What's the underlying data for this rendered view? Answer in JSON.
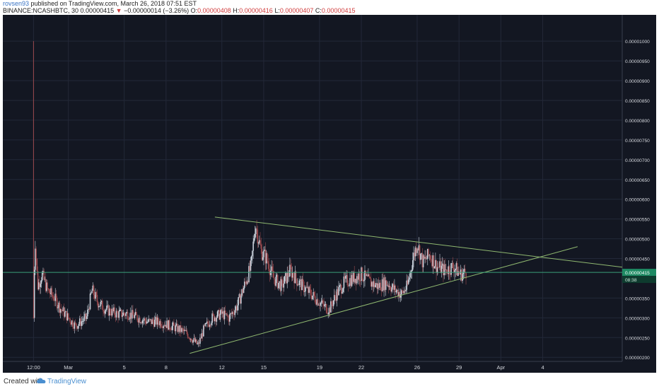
{
  "header": {
    "author": "rovsen93",
    "published_text": "published on TradingView.com, March 26, 2018 07:51 EST",
    "symbol": "BINANCE:NCASHBTC, 30",
    "last": "0.00000415",
    "change_arrow": "▼",
    "change": "−0.00000014 (−3.26%)",
    "open_label": "O:",
    "open": "0.00000408",
    "high_label": "H:",
    "high": "0.00000416",
    "low_label": "L:",
    "low": "0.00000407",
    "close_label": "C:",
    "close": "0.00000415"
  },
  "footer": {
    "created_with": "Created with",
    "brand": "TradingView",
    "logo_icon": "tradingview-cloud-icon"
  },
  "colors": {
    "background": "#131722",
    "grid": "#232838",
    "up": "#c9d2dc",
    "down": "#9b4a4e",
    "trendline": "#8fb870",
    "price_line": "#3aa07a",
    "price_badge": "#1e8a63",
    "axis_text": "#d5d8de"
  },
  "chart_data": {
    "type": "candlestick",
    "symbol": "BINANCE:NCASHBTC",
    "interval": "30",
    "y_ticks": [
      "0.00001000",
      "0.00000950",
      "0.00000900",
      "0.00000850",
      "0.00000800",
      "0.00000750",
      "0.00000700",
      "0.00000650",
      "0.00000600",
      "0.00000550",
      "0.00000500",
      "0.00000450",
      "0.00000350",
      "0.00000300",
      "0.00000250",
      "0.00000200"
    ],
    "x_ticks": [
      {
        "label": "12:00",
        "day": 0
      },
      {
        "label": "Mar",
        "day": 2.5
      },
      {
        "label": "5",
        "day": 6.5
      },
      {
        "label": "8",
        "day": 9.5
      },
      {
        "label": "12",
        "day": 13.5
      },
      {
        "label": "15",
        "day": 16.5
      },
      {
        "label": "19",
        "day": 20.5
      },
      {
        "label": "22",
        "day": 23.5
      },
      {
        "label": "26",
        "day": 27.5
      },
      {
        "label": "29",
        "day": 30.5
      },
      {
        "label": "Apr",
        "day": 33.5
      },
      {
        "label": "4",
        "day": 36.5
      }
    ],
    "ylim": [
      1.95e-06,
      1.02e-05
    ],
    "xlim": [
      -2.2,
      42.2
    ],
    "current_price": "0.00000415",
    "countdown": "08:38",
    "price_path": [
      [
        0,
        3e-06,
        1e-05
      ],
      [
        0.1,
        5.1e-06
      ],
      [
        0.3,
        3.8e-06
      ],
      [
        0.6,
        4.1e-06
      ],
      [
        1.0,
        3.7e-06
      ],
      [
        1.5,
        3.5e-06
      ],
      [
        2.0,
        3.2e-06
      ],
      [
        2.5,
        3e-06
      ],
      [
        3.0,
        2.8e-06
      ],
      [
        3.4,
        2.9e-06
      ],
      [
        3.8,
        3e-06
      ],
      [
        4.2,
        3.7e-06
      ],
      [
        4.6,
        3.4e-06
      ],
      [
        5.2,
        3.2e-06
      ],
      [
        6.0,
        3.1e-06
      ],
      [
        6.8,
        3.1e-06
      ],
      [
        7.5,
        3e-06
      ],
      [
        8.2,
        2.9e-06
      ],
      [
        9.0,
        2.9e-06
      ],
      [
        9.8,
        2.8e-06
      ],
      [
        10.5,
        2.7e-06
      ],
      [
        11.0,
        2.6e-06
      ],
      [
        11.8,
        2.3e-06
      ],
      [
        12.2,
        2.7e-06
      ],
      [
        12.8,
        3e-06
      ],
      [
        13.5,
        3.1e-06
      ],
      [
        14.0,
        3e-06
      ],
      [
        14.6,
        3.3e-06
      ],
      [
        15.1,
        3.8e-06
      ],
      [
        15.6,
        4.3e-06
      ],
      [
        15.9,
        5.4e-06
      ],
      [
        16.3,
        4.7e-06
      ],
      [
        16.7,
        4.5e-06
      ],
      [
        17.2,
        4e-06
      ],
      [
        17.8,
        3.8e-06
      ],
      [
        18.4,
        4.2e-06
      ],
      [
        19.0,
        3.9e-06
      ],
      [
        19.6,
        3.7e-06
      ],
      [
        20.2,
        3.5e-06
      ],
      [
        20.8,
        3.3e-06
      ],
      [
        21.2,
        3.2e-06
      ],
      [
        21.7,
        3.6e-06
      ],
      [
        22.3,
        3.9e-06
      ],
      [
        22.9,
        4e-06
      ],
      [
        23.5,
        4.1e-06
      ],
      [
        24.1,
        3.9e-06
      ],
      [
        24.7,
        3.8e-06
      ],
      [
        25.3,
        3.9e-06
      ],
      [
        25.9,
        3.7e-06
      ],
      [
        26.4,
        3.6e-06
      ],
      [
        26.8,
        3.8e-06
      ],
      [
        27.2,
        4.5e-06
      ],
      [
        27.5,
        4.9e-06
      ],
      [
        27.9,
        4.4e-06
      ],
      [
        28.4,
        4.6e-06
      ],
      [
        28.9,
        4.3e-06
      ],
      [
        29.5,
        4.2e-06
      ],
      [
        30.1,
        4.3e-06
      ],
      [
        30.6,
        4.1e-06
      ],
      [
        31.0,
        4.15e-06
      ]
    ],
    "trendlines": [
      {
        "name": "upper",
        "from": [
          13.0,
          5.55e-06
        ],
        "to": [
          42.2,
          4.28e-06
        ]
      },
      {
        "name": "lower",
        "from": [
          11.2,
          2.1e-06
        ],
        "to": [
          39.0,
          4.8e-06
        ]
      }
    ]
  }
}
